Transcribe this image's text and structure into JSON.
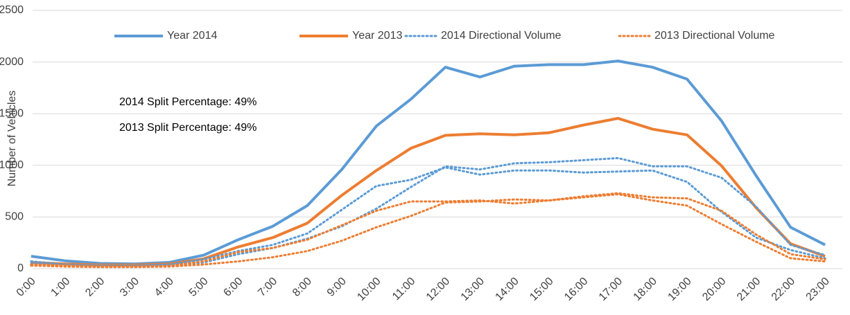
{
  "chart_data": {
    "type": "line",
    "y_label": "Number of Vehicles",
    "categories": [
      "0:00",
      "1:00",
      "2:00",
      "3:00",
      "4:00",
      "5:00",
      "6:00",
      "7:00",
      "8:00",
      "9:00",
      "10:00",
      "11:00",
      "12:00",
      "13:00",
      "14:00",
      "15:00",
      "16:00",
      "17:00",
      "18:00",
      "19:00",
      "20:00",
      "21:00",
      "22:00",
      "23:00"
    ],
    "ylim": [
      0,
      2500
    ],
    "yticks": [
      0,
      500,
      1000,
      1500,
      2000,
      2500
    ],
    "grid": true,
    "annotations": [
      "2014 Split Percentage: 49%",
      "2013 Split Percentage: 49%"
    ],
    "series": [
      {
        "name": "Year 2014",
        "color": "#5b9bd5",
        "dashed": false,
        "values": [
          120,
          75,
          50,
          45,
          60,
          130,
          280,
          410,
          610,
          960,
          1380,
          1640,
          1950,
          1855,
          1960,
          1975,
          1975,
          2010,
          1950,
          1835,
          1430,
          900,
          400,
          230
        ]
      },
      {
        "name": "Year 2013",
        "color": "#ed7d31",
        "dashed": false,
        "values": [
          60,
          45,
          35,
          35,
          45,
          95,
          210,
          300,
          440,
          710,
          950,
          1165,
          1290,
          1305,
          1295,
          1315,
          1390,
          1455,
          1350,
          1295,
          995,
          590,
          240,
          120
        ]
      },
      {
        "name": "2014 Directional Volume",
        "color": "#5b9bd5",
        "dashed": true,
        "lines": [
          [
            70,
            40,
            30,
            30,
            40,
            90,
            170,
            230,
            340,
            570,
            800,
            860,
            980,
            910,
            950,
            950,
            930,
            940,
            950,
            840,
            550,
            300,
            180,
            100
          ],
          [
            50,
            35,
            25,
            25,
            30,
            60,
            140,
            200,
            290,
            410,
            580,
            790,
            990,
            960,
            1020,
            1030,
            1050,
            1070,
            990,
            990,
            880,
            600,
            230,
            130
          ]
        ]
      },
      {
        "name": "2013 Directional Volume",
        "color": "#ed7d31",
        "dashed": true,
        "lines": [
          [
            40,
            30,
            20,
            20,
            25,
            70,
            160,
            200,
            280,
            420,
            560,
            650,
            650,
            660,
            630,
            660,
            700,
            730,
            690,
            680,
            560,
            330,
            140,
            90
          ],
          [
            30,
            20,
            15,
            15,
            20,
            40,
            70,
            110,
            170,
            270,
            400,
            510,
            640,
            650,
            670,
            660,
            690,
            720,
            660,
            610,
            430,
            260,
            100,
            70
          ]
        ]
      }
    ]
  }
}
